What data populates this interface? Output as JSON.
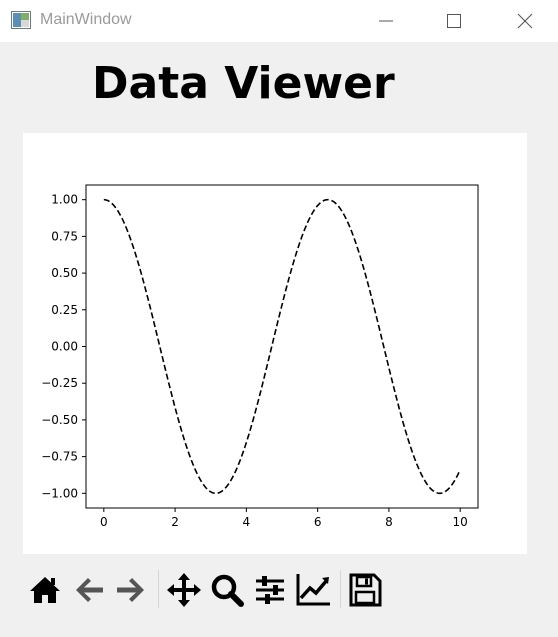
{
  "window": {
    "title": "MainWindow"
  },
  "heading": "Data Viewer",
  "toolbar": {
    "items": [
      {
        "icon": "home-icon"
      },
      {
        "icon": "back-arrow-icon"
      },
      {
        "icon": "forward-arrow-icon"
      },
      {
        "icon": "pan-icon"
      },
      {
        "icon": "zoom-icon"
      },
      {
        "icon": "configure-subplots-icon"
      },
      {
        "icon": "edit-axis-icon"
      },
      {
        "icon": "save-icon"
      }
    ]
  },
  "chart_data": {
    "type": "line",
    "function": "cos(x)",
    "x_range": [
      0,
      10
    ],
    "xlim": [
      -0.5,
      10.5
    ],
    "ylim": [
      -1.1,
      1.1
    ],
    "x_ticks": [
      0,
      2,
      4,
      6,
      8,
      10
    ],
    "x_tick_labels": [
      "0",
      "2",
      "4",
      "6",
      "8",
      "10"
    ],
    "y_ticks": [
      1.0,
      0.75,
      0.5,
      0.25,
      0.0,
      -0.25,
      -0.5,
      -0.75,
      -1.0
    ],
    "y_tick_labels": [
      "1.00",
      "0.75",
      "0.50",
      "0.25",
      "0.00",
      "−0.25",
      "−0.50",
      "−0.75",
      "−1.00"
    ],
    "series": [
      {
        "line_style": "dashed",
        "color": "#000000",
        "x": [
          0,
          0.5,
          1,
          1.5,
          2,
          2.5,
          3,
          3.1416,
          3.5,
          4,
          4.5,
          5,
          5.5,
          6,
          6.2832,
          6.5,
          7,
          7.5,
          8,
          8.5,
          9,
          9.4248,
          10
        ],
        "y": [
          1.0,
          0.878,
          0.54,
          0.071,
          -0.416,
          -0.801,
          -0.99,
          -1.0,
          -0.936,
          -0.654,
          -0.211,
          0.284,
          0.709,
          0.96,
          1.0,
          0.977,
          0.754,
          0.347,
          -0.146,
          -0.602,
          -0.911,
          -1.0,
          -0.839
        ]
      }
    ],
    "title": "",
    "xlabel": "",
    "ylabel": "",
    "grid": false
  }
}
